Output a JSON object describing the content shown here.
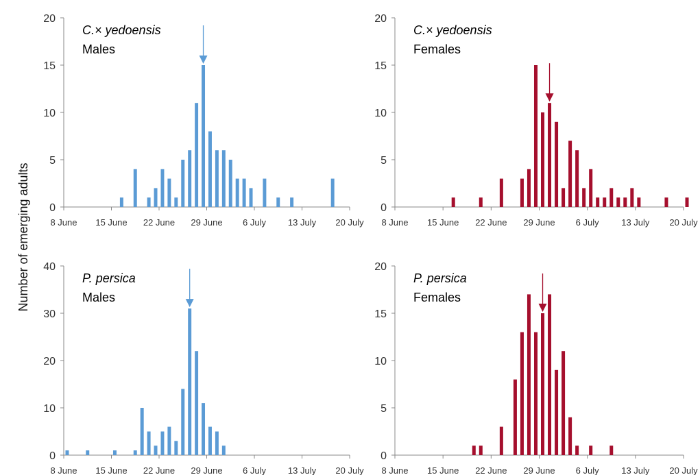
{
  "ylabel": "Number of emerging adults",
  "chart_data": [
    {
      "type": "bar",
      "title_species": "C.× yedoensis",
      "title_sex": "Males",
      "color": "#5b9bd5",
      "x_start": "8 June",
      "xlim_days": [
        0,
        42
      ],
      "ylim": [
        0,
        20
      ],
      "yticks": [
        0,
        5,
        10,
        15,
        20
      ],
      "xtick_labels": [
        "8 June",
        "15 June",
        "22 June",
        "29 June",
        "6 July",
        "13 July",
        "20 July"
      ],
      "x": [
        8,
        10,
        12,
        13,
        14,
        15,
        16,
        17,
        18,
        19,
        20,
        21,
        22,
        23,
        24,
        25,
        26,
        27,
        29,
        31,
        33,
        35,
        39
      ],
      "values": [
        1,
        4,
        1,
        2,
        4,
        3,
        1,
        5,
        6,
        11,
        15,
        8,
        6,
        6,
        5,
        3,
        3,
        2,
        3,
        1,
        1,
        0,
        3
      ],
      "arrow_x": 20
    },
    {
      "type": "bar",
      "title_species": "C.× yedoensis",
      "title_sex": "Females",
      "color": "#a50f2d",
      "x_start": "8 June",
      "xlim_days": [
        0,
        42
      ],
      "ylim": [
        0,
        20
      ],
      "yticks": [
        0,
        5,
        10,
        15,
        20
      ],
      "xtick_labels": [
        "8 June",
        "15 June",
        "22 June",
        "29 June",
        "6 July",
        "13 July",
        "20 July"
      ],
      "x": [
        8,
        12,
        15,
        18,
        19,
        20,
        21,
        22,
        23,
        24,
        25,
        26,
        27,
        28,
        29,
        30,
        31,
        32,
        33,
        34,
        35,
        39,
        42
      ],
      "values": [
        1,
        1,
        3,
        3,
        4,
        15,
        10,
        11,
        9,
        2,
        7,
        6,
        2,
        4,
        1,
        1,
        2,
        1,
        1,
        2,
        1,
        1,
        1
      ],
      "arrow_x": 22
    },
    {
      "type": "bar",
      "title_species": "P. persica",
      "title_sex": "Males",
      "color": "#5b9bd5",
      "x_start": "8 June",
      "xlim_days": [
        0,
        42
      ],
      "ylim": [
        0,
        40
      ],
      "yticks": [
        0,
        10,
        20,
        30,
        40
      ],
      "xtick_labels": [
        "8 June",
        "15 June",
        "22 June",
        "29 June",
        "6 July",
        "13 July",
        "20 July"
      ],
      "x": [
        0,
        3,
        7,
        10,
        11,
        12,
        13,
        14,
        15,
        16,
        17,
        18,
        19,
        20,
        21,
        22,
        23
      ],
      "values": [
        1,
        1,
        1,
        1,
        10,
        5,
        2,
        5,
        6,
        3,
        14,
        31,
        22,
        11,
        6,
        5,
        2
      ],
      "arrow_x": 18
    },
    {
      "type": "bar",
      "title_species": "P. persica",
      "title_sex": "Females",
      "color": "#a50f2d",
      "x_start": "8 June",
      "xlim_days": [
        0,
        42
      ],
      "ylim": [
        0,
        20
      ],
      "yticks": [
        0,
        5,
        10,
        15,
        20
      ],
      "xtick_labels": [
        "8 June",
        "15 June",
        "22 June",
        "29 June",
        "6 July",
        "13 July",
        "20 July"
      ],
      "x": [
        11,
        12,
        15,
        17,
        18,
        19,
        20,
        21,
        22,
        23,
        24,
        25,
        26,
        28,
        31
      ],
      "values": [
        1,
        1,
        3,
        8,
        13,
        17,
        13,
        15,
        17,
        9,
        11,
        4,
        1,
        1,
        1
      ],
      "arrow_x": 21
    }
  ]
}
